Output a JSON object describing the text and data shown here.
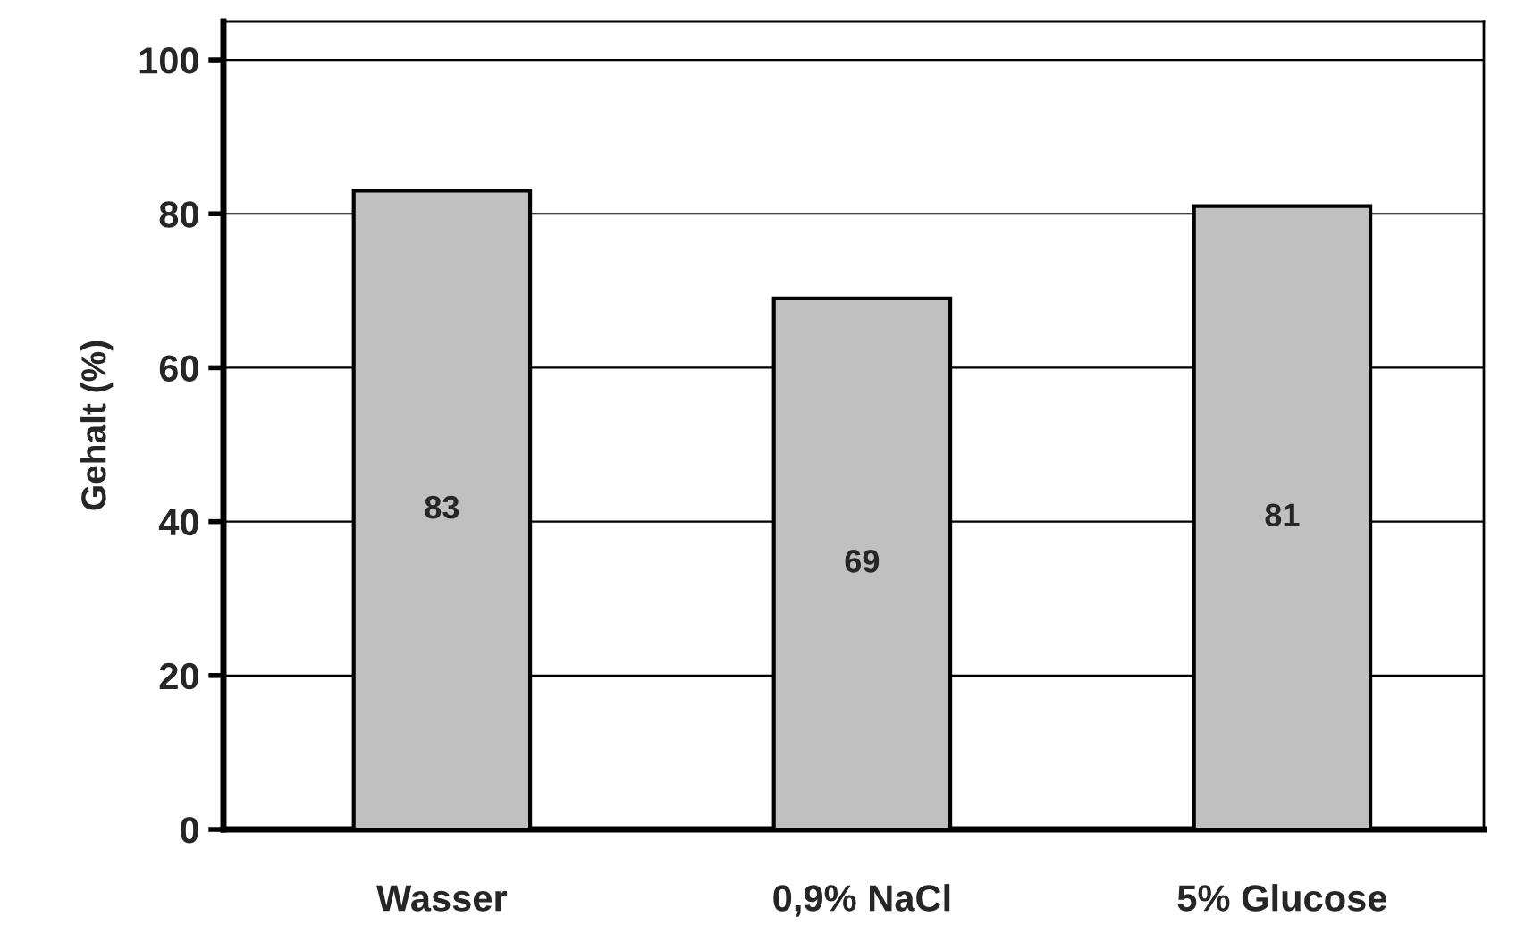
{
  "chart_data": {
    "type": "bar",
    "ylabel": "Gehalt (%)",
    "categories": [
      "Wasser",
      "0,9% NaCl",
      "5% Glucose"
    ],
    "values": [
      83,
      69,
      81
    ],
    "color": "#c0c0c0",
    "ylim": [
      0,
      105
    ],
    "yticks": [
      0,
      20,
      40,
      60,
      80,
      100
    ],
    "grid": "y",
    "data_labels": true,
    "legend": false
  }
}
